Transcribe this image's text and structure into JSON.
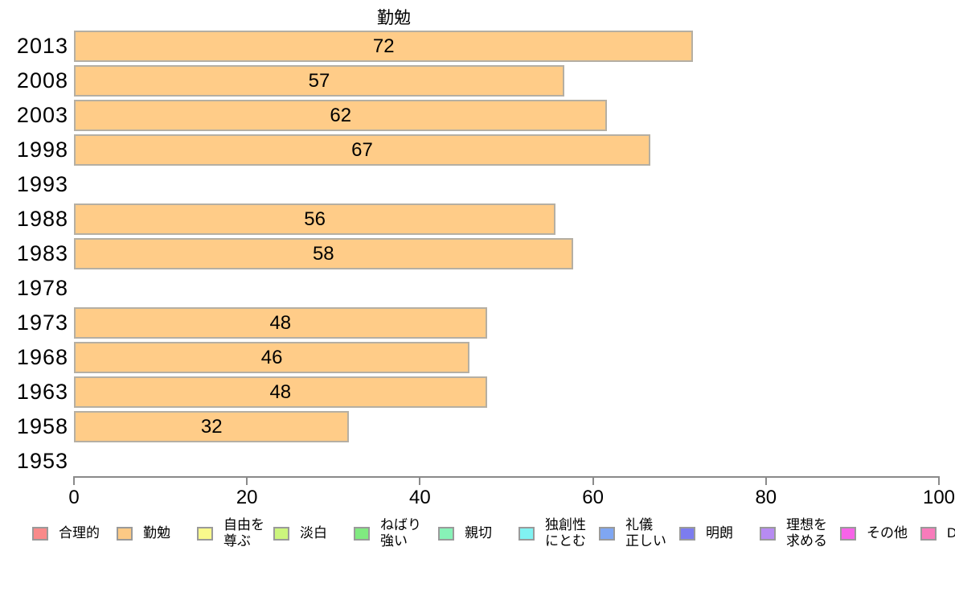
{
  "chart_data": {
    "type": "bar",
    "orientation": "horizontal",
    "title": "勤勉",
    "categories": [
      "2013",
      "2008",
      "2003",
      "1998",
      "1993",
      "1988",
      "1983",
      "1978",
      "1973",
      "1968",
      "1963",
      "1958",
      "1953"
    ],
    "values": [
      72,
      57,
      62,
      67,
      null,
      56,
      58,
      null,
      48,
      46,
      48,
      32,
      null
    ],
    "xlabel": "",
    "ylabel": "",
    "xlim": [
      0,
      100
    ],
    "x_ticks": [
      0,
      20,
      40,
      60,
      80,
      100
    ],
    "grid": false,
    "bar_color": "#FFCC88",
    "bar_border_color": "#B5AFA3",
    "value_labels_inside_bars": true,
    "legend_position": "bottom",
    "legend": [
      {
        "label": "合理的",
        "color": "#F98A8A"
      },
      {
        "label": "勤勉",
        "color": "#FBC985"
      },
      {
        "label": "自由を\n尊ぶ",
        "color": "#F8F88C"
      },
      {
        "label": "淡白",
        "color": "#CCF57D"
      },
      {
        "label": "ねばり\n強い",
        "color": "#80EA80"
      },
      {
        "label": "親切",
        "color": "#87F2B7"
      },
      {
        "label": "独創性\nにとむ",
        "color": "#80F2F2"
      },
      {
        "label": "礼儀\n正しい",
        "color": "#7FA6F2"
      },
      {
        "label": "明朗",
        "color": "#7C7CEF"
      },
      {
        "label": "理想を\n求める",
        "color": "#B78BF2"
      },
      {
        "label": "その他",
        "color": "#F763E8"
      },
      {
        "label": "D",
        "color": "#F87BBB"
      }
    ]
  }
}
